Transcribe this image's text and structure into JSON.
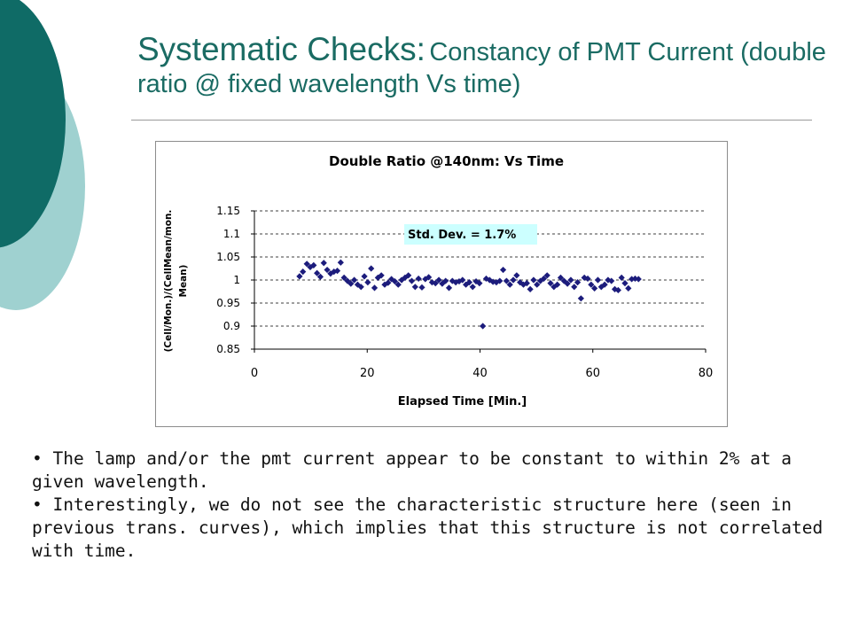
{
  "title": {
    "main": "Systematic Checks:",
    "sub": "Constancy of PMT Current (double ratio @ fixed wavelength Vs time)"
  },
  "colors": {
    "title": "#1a6b63",
    "deco_dark": "#0f6b66",
    "deco_light": "#9fd1d0",
    "marker": "#1c1c7c"
  },
  "bullet_char": "•",
  "bullets": [
    "The lamp and/or the pmt current appear to be constant to within 2% at a given wavelength.",
    "Interestingly, we do not see the characteristic structure here (seen in previous trans. curves), which implies that this structure is not correlated with time."
  ],
  "chart_data": {
    "type": "scatter",
    "title": "Double Ratio @140nm: Vs Time",
    "xlabel": "Elapsed Time [Min.]",
    "ylabel": "(Cell/Mon.)/(CellMean/mon. Mean)",
    "xlim": [
      0,
      80
    ],
    "ylim": [
      0.85,
      1.15
    ],
    "x_ticks": [
      "0",
      "20",
      "40",
      "60",
      "80"
    ],
    "y_ticks": [
      "1.15",
      "1.1",
      "1.05",
      "1",
      "0.95",
      "0.9",
      "0.85"
    ],
    "grid": "horizontal dashed",
    "legend": "none",
    "annotation": "Std. Dev. = 1.7%",
    "marker": "diamond",
    "points": [
      [
        8,
        1.008
      ],
      [
        8.6,
        1.018
      ],
      [
        9.3,
        1.035
      ],
      [
        9.9,
        1.028
      ],
      [
        10.5,
        1.032
      ],
      [
        11.1,
        1.015
      ],
      [
        11.7,
        1.007
      ],
      [
        12.3,
        1.037
      ],
      [
        12.9,
        1.022
      ],
      [
        13.5,
        1.014
      ],
      [
        14.1,
        1.018
      ],
      [
        14.7,
        1.02
      ],
      [
        15.3,
        1.038
      ],
      [
        15.9,
        1.005
      ],
      [
        16.5,
        0.998
      ],
      [
        17.1,
        0.992
      ],
      [
        17.7,
        1.0
      ],
      [
        18.3,
        0.99
      ],
      [
        18.9,
        0.985
      ],
      [
        19.5,
        1.008
      ],
      [
        20.1,
        0.995
      ],
      [
        20.7,
        1.025
      ],
      [
        21.3,
        0.983
      ],
      [
        21.9,
        1.005
      ],
      [
        22.5,
        1.01
      ],
      [
        23.1,
        0.99
      ],
      [
        23.7,
        0.994
      ],
      [
        24.3,
        1.002
      ],
      [
        24.9,
        0.997
      ],
      [
        25.5,
        0.99
      ],
      [
        26.1,
        1.0
      ],
      [
        26.7,
        1.005
      ],
      [
        27.3,
        1.01
      ],
      [
        27.9,
        0.998
      ],
      [
        28.5,
        0.985
      ],
      [
        29.1,
        1.003
      ],
      [
        29.7,
        0.984
      ],
      [
        30.3,
        1.002
      ],
      [
        30.9,
        1.006
      ],
      [
        31.5,
        0.995
      ],
      [
        32.1,
        0.993
      ],
      [
        32.7,
        1.0
      ],
      [
        33.3,
        0.992
      ],
      [
        33.9,
        0.998
      ],
      [
        34.5,
        0.983
      ],
      [
        35.1,
        0.998
      ],
      [
        35.7,
        0.995
      ],
      [
        36.3,
        0.997
      ],
      [
        36.9,
        1.0
      ],
      [
        37.5,
        0.99
      ],
      [
        38.1,
        0.995
      ],
      [
        38.7,
        0.985
      ],
      [
        39.3,
        0.997
      ],
      [
        39.9,
        0.993
      ],
      [
        40.5,
        0.9
      ],
      [
        41.1,
        1.003
      ],
      [
        41.7,
        1.0
      ],
      [
        42.3,
        0.996
      ],
      [
        42.9,
        0.995
      ],
      [
        43.5,
        0.998
      ],
      [
        44.1,
        1.022
      ],
      [
        44.7,
        0.998
      ],
      [
        45.3,
        0.99
      ],
      [
        45.9,
        1.0
      ],
      [
        46.5,
        1.01
      ],
      [
        47.1,
        0.995
      ],
      [
        47.7,
        0.99
      ],
      [
        48.3,
        0.993
      ],
      [
        48.9,
        0.98
      ],
      [
        49.5,
        1.0
      ],
      [
        50.1,
        0.99
      ],
      [
        50.7,
        0.998
      ],
      [
        51.3,
        1.003
      ],
      [
        51.9,
        1.01
      ],
      [
        52.5,
        0.993
      ],
      [
        53.1,
        0.985
      ],
      [
        53.7,
        0.99
      ],
      [
        54.3,
        1.005
      ],
      [
        54.9,
        0.998
      ],
      [
        55.5,
        0.992
      ],
      [
        56.1,
        1.0
      ],
      [
        56.7,
        0.985
      ],
      [
        57.3,
        0.995
      ],
      [
        57.9,
        0.96
      ],
      [
        58.5,
        1.005
      ],
      [
        59.1,
        1.003
      ],
      [
        59.7,
        0.99
      ],
      [
        60.3,
        0.982
      ],
      [
        60.9,
        1.0
      ],
      [
        61.5,
        0.985
      ],
      [
        62.1,
        0.99
      ],
      [
        62.7,
        1.0
      ],
      [
        63.3,
        0.998
      ],
      [
        63.9,
        0.98
      ],
      [
        64.5,
        0.978
      ],
      [
        65.1,
        1.005
      ],
      [
        65.7,
        0.993
      ],
      [
        66.3,
        0.982
      ],
      [
        66.9,
        1.002
      ],
      [
        67.5,
        1.003
      ],
      [
        68.1,
        1.002
      ]
    ]
  }
}
